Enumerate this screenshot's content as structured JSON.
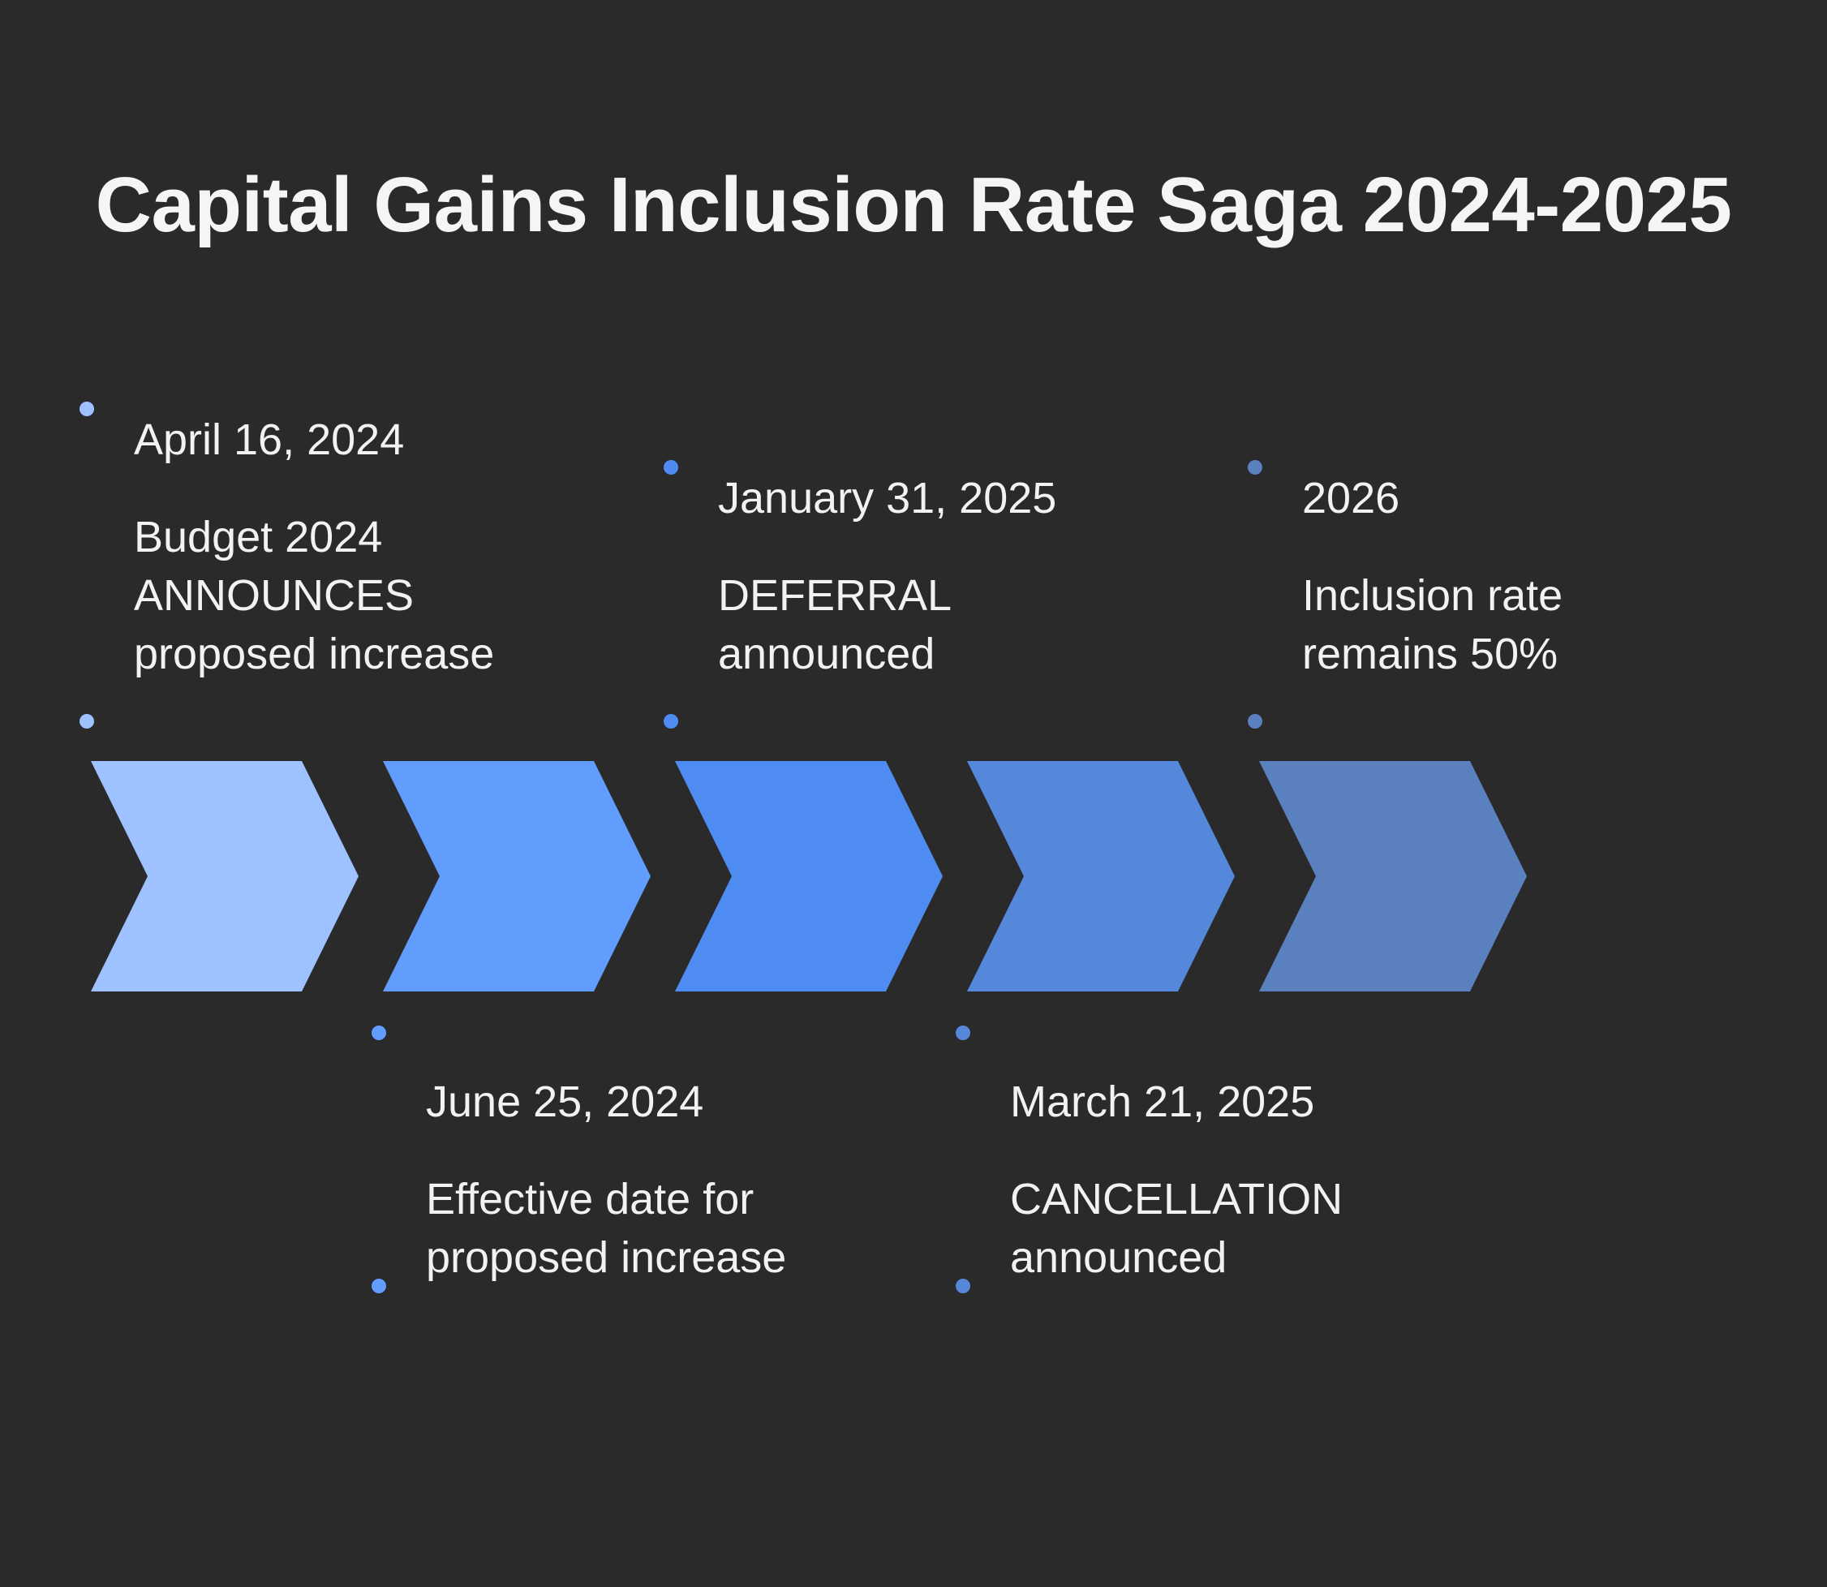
{
  "title": "Capital Gains Inclusion Rate Saga 2024-2025",
  "colors": {
    "background": "#2a2a2b",
    "text": "#f2f2f2",
    "chevrons": [
      "#9ec2ff",
      "#619dfd",
      "#4f8cf2",
      "#5587da",
      "#5b80bf"
    ]
  },
  "events": [
    {
      "date": "April 16, 2024",
      "lines": [
        "Budget 2024",
        "ANNOUNCES",
        "proposed increase"
      ]
    },
    {
      "date": "June 25, 2024",
      "lines": [
        "Effective date for",
        "proposed increase"
      ]
    },
    {
      "date": "January 31, 2025",
      "lines": [
        "DEFERRAL",
        "announced"
      ]
    },
    {
      "date": "March 21, 2025",
      "lines": [
        "CANCELLATION",
        "announced"
      ]
    },
    {
      "date": "2026",
      "lines": [
        "Inclusion rate",
        "remains 50%"
      ]
    }
  ]
}
